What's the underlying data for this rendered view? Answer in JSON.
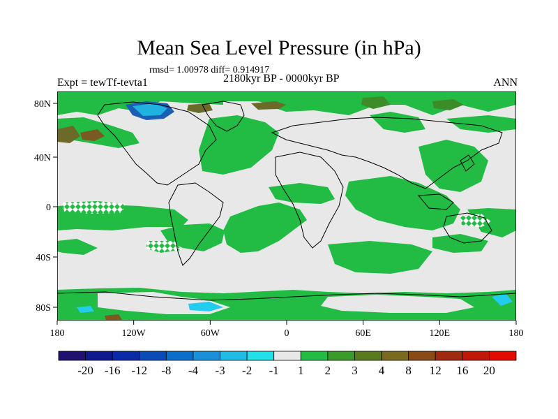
{
  "title": "Mean Sea Level Pressure (in hPa)",
  "stats_line": "rmsd= 1.00978 diff= 0.914917",
  "left_label": "Expt = tewTf-tevta1",
  "center_label": "2180kyr BP - 0000kyr BP",
  "right_label": "ANN",
  "colors": {
    "land_outline": "#000000",
    "neutral_fill": "#e8e8e8",
    "positive_green": "#22bb44",
    "dark_green": "#3c8c28",
    "olive": "#6b6a28",
    "brown": "#7a5a22",
    "cyan": "#22ccee",
    "blue": "#1a5fb4"
  },
  "map": {
    "x_ticks": [
      "180",
      "120W",
      "60W",
      "0",
      "60E",
      "120E",
      "180"
    ],
    "y_ticks": [
      "80N",
      "40N",
      "0",
      "40S",
      "80S"
    ]
  },
  "colorbar": {
    "labels": [
      "-20",
      "-16",
      "-12",
      "-8",
      "-4",
      "-3",
      "-2",
      "-1",
      "1",
      "2",
      "3",
      "4",
      "8",
      "12",
      "16",
      "20"
    ],
    "colors": [
      "#201070",
      "#101890",
      "#0a2aa8",
      "#0a4bb8",
      "#0a6fc8",
      "#1a90d8",
      "#22bbe6",
      "#22e0e8",
      "#e8e8e8",
      "#22bb44",
      "#3a9a2a",
      "#5a7a20",
      "#7a6a20",
      "#8a4a18",
      "#a02a10",
      "#c01808",
      "#e00c00"
    ]
  }
}
